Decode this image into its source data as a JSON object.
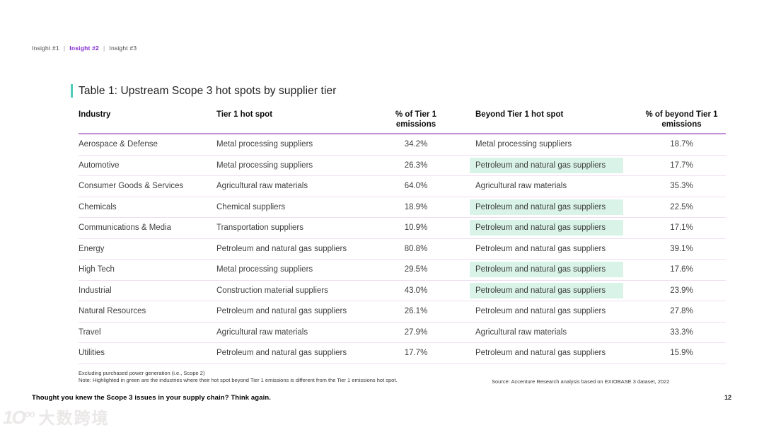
{
  "nav": {
    "separator": "|",
    "items": [
      {
        "label": "Insight #1",
        "active": false
      },
      {
        "label": "Insight #2",
        "active": true
      },
      {
        "label": "Insight #3",
        "active": false
      }
    ]
  },
  "title": "Table 1: Upstream Scope 3 hot spots by supplier tier",
  "table": {
    "columns": {
      "industry": "Industry",
      "tier1_hotspot": "Tier 1 hot spot",
      "pct_tier1": "% of Tier 1 emissions",
      "beyond_tier1_hotspot": "Beyond Tier 1 hot spot",
      "pct_beyond_tier1": "% of beyond Tier 1 emissions"
    },
    "rows": [
      {
        "industry": "Aerospace & Defense",
        "tier1": "Metal processing suppliers",
        "pct_tier1": "34.2%",
        "beyond": "Metal processing suppliers",
        "pct_beyond": "18.7%",
        "highlighted": false
      },
      {
        "industry": "Automotive",
        "tier1": "Metal processing suppliers",
        "pct_tier1": "26.3%",
        "beyond": "Petroleum and natural gas suppliers",
        "pct_beyond": "17.7%",
        "highlighted": true
      },
      {
        "industry": "Consumer Goods & Services",
        "tier1": "Agricultural raw materials",
        "pct_tier1": "64.0%",
        "beyond": "Agricultural raw materials",
        "pct_beyond": "35.3%",
        "highlighted": false
      },
      {
        "industry": "Chemicals",
        "tier1": "Chemical suppliers",
        "pct_tier1": "18.9%",
        "beyond": "Petroleum and natural gas suppliers",
        "pct_beyond": "22.5%",
        "highlighted": true
      },
      {
        "industry": "Communications & Media",
        "tier1": "Transportation suppliers",
        "pct_tier1": "10.9%",
        "beyond": "Petroleum and natural gas suppliers",
        "pct_beyond": "17.1%",
        "highlighted": true
      },
      {
        "industry": "Energy",
        "tier1": "Petroleum and natural gas suppliers",
        "pct_tier1": "80.8%",
        "beyond": "Petroleum and natural gas suppliers",
        "pct_beyond": "39.1%",
        "highlighted": false
      },
      {
        "industry": "High Tech",
        "tier1": "Metal processing suppliers",
        "pct_tier1": "29.5%",
        "beyond": "Petroleum and natural gas suppliers",
        "pct_beyond": "17.6%",
        "highlighted": true
      },
      {
        "industry": "Industrial",
        "tier1": "Construction material suppliers",
        "pct_tier1": "43.0%",
        "beyond": "Petroleum and natural gas suppliers",
        "pct_beyond": "23.9%",
        "highlighted": true
      },
      {
        "industry": "Natural Resources",
        "tier1": "Petroleum and natural gas suppliers",
        "pct_tier1": "26.1%",
        "beyond": "Petroleum and natural gas suppliers",
        "pct_beyond": "27.8%",
        "highlighted": false
      },
      {
        "industry": "Travel",
        "tier1": "Agricultural raw materials",
        "pct_tier1": "27.9%",
        "beyond": "Agricultural raw materials",
        "pct_beyond": "33.3%",
        "highlighted": false
      },
      {
        "industry": "Utilities",
        "tier1": "Petroleum and natural gas suppliers",
        "pct_tier1": "17.7%",
        "beyond": "Petroleum and natural gas suppliers",
        "pct_beyond": "15.9%",
        "highlighted": false
      }
    ]
  },
  "footnotes": {
    "line1": "Excluding purchased power generation (i.e., Scope 2)",
    "line2": "Note: Highlighted in green are the industries where their hot spot beyond Tier 1 emissions is different from the Tier 1 emissions hot spot."
  },
  "source": "Source: Accenture Research analysis based on EXIOBASE 3 dataset, 2022",
  "page_number": "12",
  "tagline": "Thought you knew the Scope 3 issues in your supply chain? Think again.",
  "watermark": {
    "icon_text": "1O",
    "icon_sup": "oo",
    "logo_text": "大数跨境"
  },
  "colors": {
    "accent_purple": "#8227ce",
    "header_rule_purple": "#c08fd4",
    "row_rule_lavender": "#efddf0",
    "highlight_green": "#d9f3e8",
    "title_bar_teal": "#4fcdba"
  }
}
